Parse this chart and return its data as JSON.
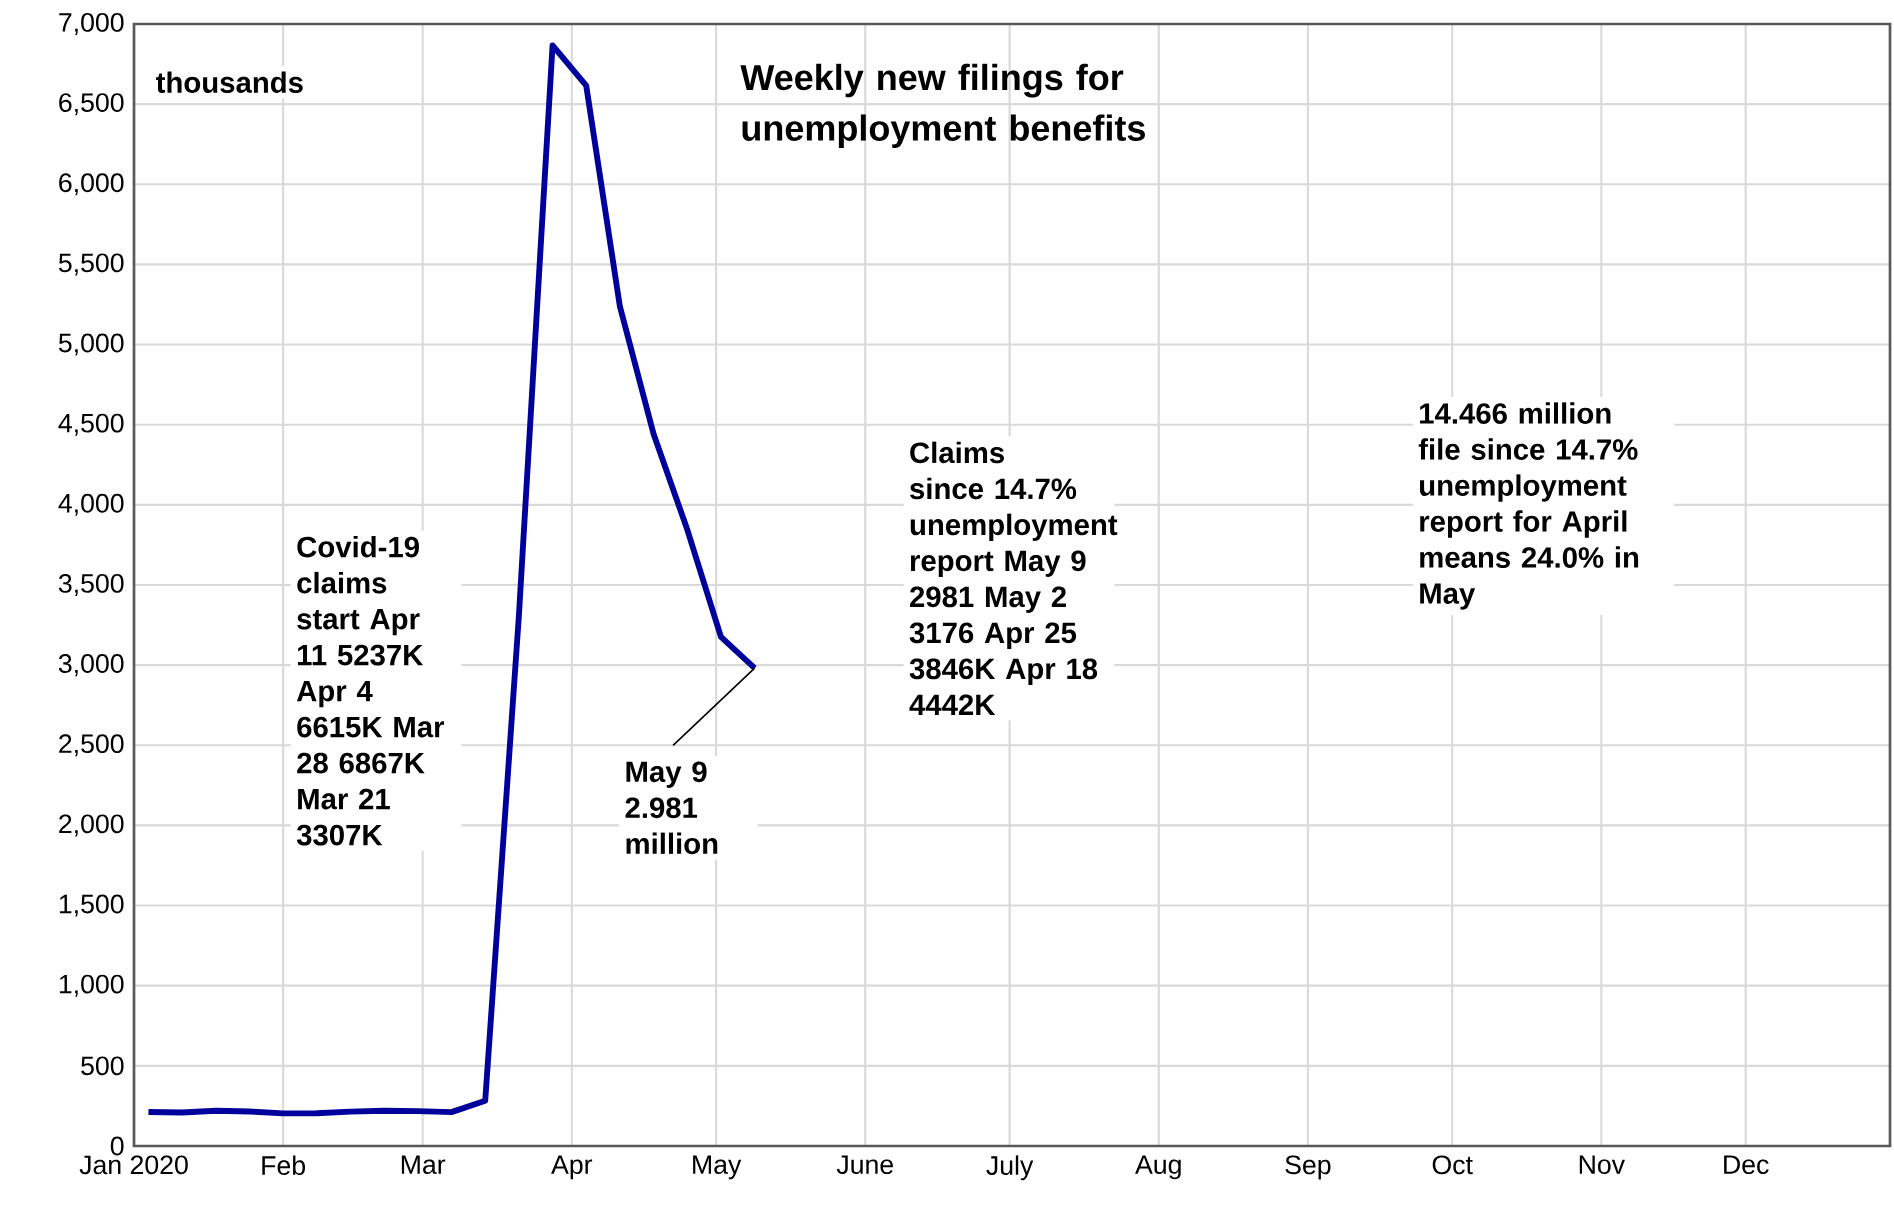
{
  "chart_data": {
    "type": "line",
    "title": "Weekly new filings for unemployment benefits",
    "x": [
      "2020-01-04",
      "2020-01-11",
      "2020-01-18",
      "2020-01-25",
      "2020-02-01",
      "2020-02-08",
      "2020-02-15",
      "2020-02-22",
      "2020-02-29",
      "2020-03-07",
      "2020-03-14",
      "2020-03-21",
      "2020-03-28",
      "2020-04-04",
      "2020-04-11",
      "2020-04-18",
      "2020-04-25",
      "2020-05-02",
      "2020-05-09"
    ],
    "series": [
      {
        "color": "#00009c",
        "values": [
          212,
          209,
          220,
          215,
          203,
          204,
          214,
          220,
          217,
          211,
          282,
          3307,
          6867,
          6615,
          5237,
          4442,
          3846,
          3176,
          2981
        ]
      }
    ],
    "xlim": [
      "2020-01-01",
      "2020-12-31"
    ],
    "xticks": [
      {
        "value": "2020-01-01",
        "label": "Jan 2020"
      },
      {
        "value": "2020-02-01",
        "label": "Feb"
      },
      {
        "value": "2020-03-01",
        "label": "Mar"
      },
      {
        "value": "2020-04-01",
        "label": "Apr"
      },
      {
        "value": "2020-05-01",
        "label": "May"
      },
      {
        "value": "2020-06-01",
        "label": "June"
      },
      {
        "value": "2020-07-01",
        "label": "July"
      },
      {
        "value": "2020-08-01",
        "label": "Aug"
      },
      {
        "value": "2020-09-01",
        "label": "Sep"
      },
      {
        "value": "2020-10-01",
        "label": "Oct"
      },
      {
        "value": "2020-11-01",
        "label": "Nov"
      },
      {
        "value": "2020-12-01",
        "label": "Dec"
      }
    ],
    "ylim": [
      0,
      7000
    ],
    "yticks": [
      0,
      500,
      {
        "value": 1000,
        "label": "1,000"
      },
      {
        "value": 1500,
        "label": "1,500"
      },
      {
        "value": 2000,
        "label": "2,000"
      },
      {
        "value": 2500,
        "label": "2,500"
      },
      {
        "value": 3000,
        "label": "3,000"
      },
      {
        "value": 3500,
        "label": "3,500"
      },
      {
        "value": 4000,
        "label": "4,000"
      },
      {
        "value": 4500,
        "label": "4,500"
      },
      {
        "value": 5000,
        "label": "5,000"
      },
      {
        "value": 5500,
        "label": "5,500"
      },
      {
        "value": 6000,
        "label": "6,000"
      },
      {
        "value": 6500,
        "label": "6,500"
      },
      {
        "value": 7000,
        "label": "7,000"
      }
    ],
    "grid": true,
    "annotations": [
      "thousands",
      "Covid-19 claims start Apr 11 5237K Apr 4 6615K Mar 28 6867K Mar 21 3307K",
      {
        "text": "May 9 2.981 million",
        "x": "2020-05-09",
        "y": 2981
      },
      "Claims since 14.7% unemployment report May 9 2981 May 2 3176 Apr 25 3846K Apr 18 4442K",
      "14.466 million file since 14.7% unemployment report for April means 24.0% in May"
    ]
  }
}
